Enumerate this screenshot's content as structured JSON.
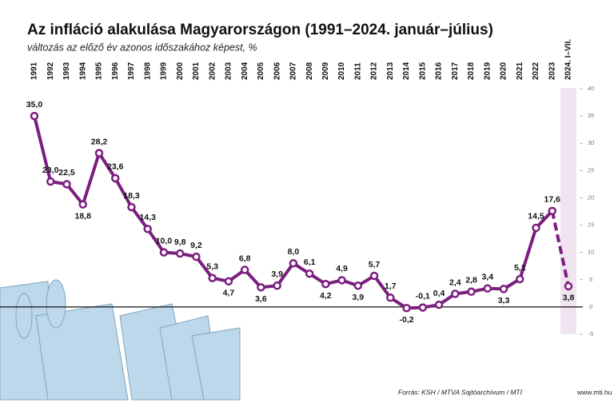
{
  "chart_data": {
    "type": "line",
    "title": "Az infláció alakulása Magyarországon (1991–2024. január–július)",
    "subtitle": "változás az előző év azonos időszakához képest, %",
    "source": "Forrás: KSH / MTVA Sajtóarchívum / MTI",
    "website": "www.mti.hu",
    "categories": [
      "1991",
      "1992",
      "1993",
      "1994",
      "1995",
      "1996",
      "1997",
      "1998",
      "1999",
      "2000",
      "2001",
      "2002",
      "2003",
      "2004",
      "2005",
      "2006",
      "2007",
      "2008",
      "2009",
      "2010",
      "2011",
      "2012",
      "2013",
      "2014",
      "2015",
      "2016",
      "2017",
      "2018",
      "2019",
      "2020",
      "2021",
      "2022",
      "2023",
      "2024. I–VII."
    ],
    "series": [
      {
        "name": "Infláció",
        "color": "#7b1f7f",
        "values": [
          35.0,
          23.0,
          22.5,
          18.8,
          28.2,
          23.6,
          18.3,
          14.3,
          10.0,
          9.8,
          9.2,
          5.3,
          4.7,
          6.8,
          3.6,
          3.9,
          8.0,
          6.1,
          4.2,
          4.9,
          3.9,
          5.7,
          1.7,
          -0.2,
          -0.1,
          0.4,
          2.4,
          2.8,
          3.4,
          3.3,
          5.1,
          14.5,
          17.6,
          3.8
        ],
        "value_labels": [
          "35,0",
          "23,0",
          "22,5",
          "18,8",
          "28,2",
          "23,6",
          "18,3",
          "14,3",
          "10,0",
          "9,8",
          "9,2",
          "5,3",
          "4,7",
          "6,8",
          "3,6",
          "3,9",
          "8,0",
          "6,1",
          "4,2",
          "4,9",
          "3,9",
          "5,7",
          "1,7",
          "-0,2",
          "-0,1",
          "0,4",
          "2,4",
          "2,8",
          "3,4",
          "3,3",
          "5,1",
          "14,5",
          "17,6",
          "3,8"
        ]
      }
    ],
    "ylim": [
      -5,
      40
    ],
    "yticks": [
      -5,
      0,
      5,
      10,
      15,
      20,
      25,
      30,
      35,
      40
    ],
    "y_axis_side": "right"
  }
}
